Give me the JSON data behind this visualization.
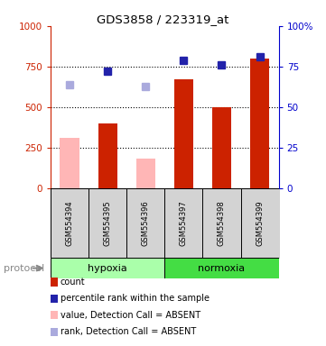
{
  "title": "GDS3858 / 223319_at",
  "samples": [
    "GSM554394",
    "GSM554395",
    "GSM554396",
    "GSM554397",
    "GSM554398",
    "GSM554399"
  ],
  "bar_values": [
    310,
    400,
    185,
    670,
    500,
    800
  ],
  "bar_colors": [
    "#FFB6B6",
    "#CC2200",
    "#FFB6B6",
    "#CC2200",
    "#CC2200",
    "#CC2200"
  ],
  "rank_values": [
    64,
    72,
    62.5,
    79,
    76,
    81
  ],
  "rank_colors": [
    "#AAAADD",
    "#2222AA",
    "#AAAADD",
    "#2222AA",
    "#2222AA",
    "#2222AA"
  ],
  "ylim_left": [
    0,
    1000
  ],
  "ylim_right": [
    0,
    100
  ],
  "yticks_left": [
    0,
    250,
    500,
    750,
    1000
  ],
  "yticks_right": [
    0,
    25,
    50,
    75,
    100
  ],
  "ytick_labels_right": [
    "0",
    "25",
    "50",
    "75",
    "100%"
  ],
  "grid_values": [
    250,
    500,
    750
  ],
  "left_tick_color": "#CC2200",
  "right_tick_color": "#0000CC",
  "legend_items": [
    {
      "color": "#CC2200",
      "label": "count"
    },
    {
      "color": "#2222AA",
      "label": "percentile rank within the sample"
    },
    {
      "color": "#FFB6B6",
      "label": "value, Detection Call = ABSENT"
    },
    {
      "color": "#AAAADD",
      "label": "rank, Detection Call = ABSENT"
    }
  ],
  "bar_width": 0.5,
  "marker_size": 6,
  "bg_color": "#FFFFFF",
  "label_area_color": "#D3D3D3",
  "hypoxia_color": "#AAFFAA",
  "normoxia_color": "#44DD44",
  "hypoxia_label": "hypoxia",
  "normoxia_label": "normoxia",
  "protocol_label": "protocol"
}
